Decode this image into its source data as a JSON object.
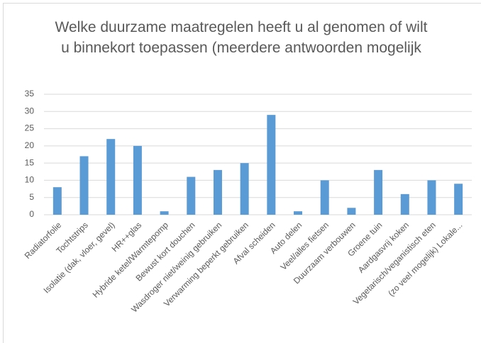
{
  "chart_data": {
    "type": "bar",
    "title": "Welke duurzame maatregelen heeft u al genomen of wilt u binnekort toepassen (meerdere antwoorden mogelijk",
    "categories": [
      "Radiatorfolie",
      "Tochtstrips",
      "Isolatie (dak, vloer, gevel)",
      "HR++glas",
      "Hybride ketel/Warmtepomp",
      "Bewust kort douchen",
      "Wasdroger niet/weinig gebruiken",
      "Verwarming beperkt gebruiken",
      "Afval scheiden",
      "Auto delen",
      "Veel/alles fietsen",
      "Duurzaam verbouwen",
      "Groene tuin",
      "Aardgasvrij koken",
      "Vegetarisch/veganistisch eten",
      "(zo veel mogelijk) Lokale..."
    ],
    "values": [
      8,
      17,
      22,
      20,
      1,
      11,
      13,
      15,
      29,
      1,
      10,
      2,
      13,
      6,
      10,
      9
    ],
    "color": "#5b9bd5",
    "ylim": [
      0,
      35
    ],
    "yticks": [
      0,
      5,
      10,
      15,
      20,
      25,
      30,
      35
    ],
    "grid": true
  }
}
